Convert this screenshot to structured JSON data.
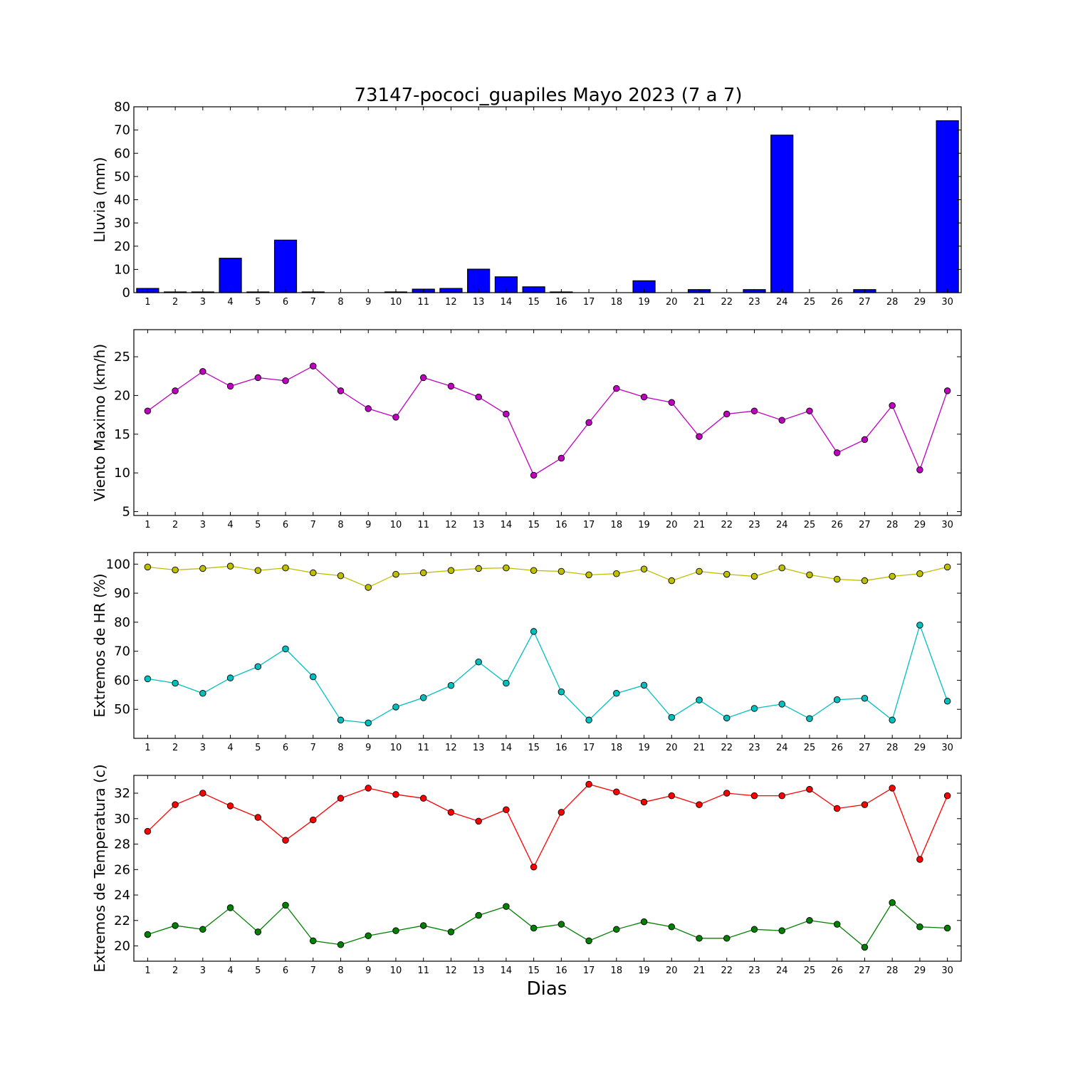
{
  "figure": {
    "title": "73147-pococi_guapiles Mayo 2023  (7 a 7)",
    "xlabel": "Dias"
  },
  "chart_data": [
    {
      "type": "bar",
      "ylabel": "Lluvia (mm)",
      "ylim": [
        0,
        80
      ],
      "yticks": [
        0,
        10,
        20,
        30,
        40,
        50,
        60,
        70,
        80
      ],
      "xlim": [
        0.5,
        30.5
      ],
      "x": [
        1,
        2,
        3,
        4,
        5,
        6,
        7,
        8,
        9,
        10,
        11,
        12,
        13,
        14,
        15,
        16,
        17,
        18,
        19,
        20,
        21,
        22,
        23,
        24,
        25,
        26,
        27,
        28,
        29,
        30
      ],
      "series": [
        {
          "color": "#0000ff",
          "values": [
            1.8,
            0.3,
            0.3,
            14.8,
            0.3,
            22.6,
            0.3,
            0,
            0,
            0.3,
            1.5,
            1.8,
            10.1,
            6.8,
            2.5,
            0.3,
            0,
            0,
            5.1,
            0,
            1.3,
            0,
            1.3,
            67.8,
            0,
            0,
            1.3,
            0,
            0,
            74.0
          ]
        }
      ]
    },
    {
      "type": "line",
      "ylabel": "Viento Maximo (km/h)",
      "ylim": [
        4.5,
        28.5
      ],
      "yticks": [
        5,
        10,
        15,
        20,
        25
      ],
      "xlim": [
        0.5,
        30.5
      ],
      "x": [
        1,
        2,
        3,
        4,
        5,
        6,
        7,
        8,
        9,
        10,
        11,
        12,
        13,
        14,
        15,
        16,
        17,
        18,
        19,
        20,
        21,
        22,
        23,
        24,
        25,
        26,
        27,
        28,
        29,
        30
      ],
      "series": [
        {
          "color": "#bf00bf",
          "values": [
            18.0,
            20.6,
            23.1,
            21.2,
            22.3,
            21.9,
            23.8,
            20.6,
            18.3,
            17.2,
            22.3,
            21.2,
            19.8,
            17.6,
            9.7,
            11.9,
            16.5,
            20.9,
            19.8,
            19.1,
            14.7,
            17.6,
            18.0,
            16.8,
            18.0,
            12.6,
            14.3,
            18.7,
            10.4,
            20.6
          ]
        }
      ]
    },
    {
      "type": "line",
      "ylabel": "Extremos de HR (%)",
      "ylim": [
        40,
        104
      ],
      "yticks": [
        50,
        60,
        70,
        80,
        90,
        100
      ],
      "xlim": [
        0.5,
        30.5
      ],
      "x": [
        1,
        2,
        3,
        4,
        5,
        6,
        7,
        8,
        9,
        10,
        11,
        12,
        13,
        14,
        15,
        16,
        17,
        18,
        19,
        20,
        21,
        22,
        23,
        24,
        25,
        26,
        27,
        28,
        29,
        30
      ],
      "series": [
        {
          "color": "#bfbf00",
          "values": [
            99,
            98,
            98.5,
            99.3,
            97.8,
            98.7,
            97,
            96,
            92,
            96.5,
            97,
            97.8,
            98.5,
            98.7,
            97.8,
            97.5,
            96.3,
            96.7,
            98.3,
            94.3,
            97.5,
            96.5,
            95.8,
            98.7,
            96.3,
            94.8,
            94.3,
            95.8,
            96.7,
            99
          ]
        },
        {
          "color": "#00bfbf",
          "values": [
            60.5,
            59,
            55.5,
            60.8,
            64.7,
            70.8,
            61.2,
            46.3,
            45.3,
            50.8,
            54,
            58.2,
            66.3,
            59,
            76.8,
            56,
            46.3,
            55.5,
            58.3,
            47.2,
            53.2,
            47,
            50.3,
            51.8,
            46.8,
            53.3,
            53.8,
            46.3,
            79,
            52.8
          ]
        }
      ]
    },
    {
      "type": "line",
      "ylabel": "Extremos de Temperatura (c)",
      "ylim": [
        18.8,
        33.4
      ],
      "yticks": [
        20,
        22,
        24,
        26,
        28,
        30,
        32
      ],
      "xlim": [
        0.5,
        30.5
      ],
      "x": [
        1,
        2,
        3,
        4,
        5,
        6,
        7,
        8,
        9,
        10,
        11,
        12,
        13,
        14,
        15,
        16,
        17,
        18,
        19,
        20,
        21,
        22,
        23,
        24,
        25,
        26,
        27,
        28,
        29,
        30
      ],
      "series": [
        {
          "color": "#ff0000",
          "values": [
            29.0,
            31.1,
            32.0,
            31.0,
            30.1,
            28.3,
            29.9,
            31.6,
            32.4,
            31.9,
            31.6,
            30.5,
            29.8,
            30.7,
            26.2,
            30.5,
            32.7,
            32.1,
            31.3,
            31.8,
            31.1,
            32.0,
            31.8,
            31.8,
            32.3,
            30.8,
            31.1,
            32.4,
            26.8,
            31.8
          ]
        },
        {
          "color": "#008000",
          "values": [
            20.9,
            21.6,
            21.3,
            23.0,
            21.1,
            23.2,
            20.4,
            20.1,
            20.8,
            21.2,
            21.6,
            21.1,
            22.4,
            23.1,
            21.4,
            21.7,
            20.4,
            21.3,
            21.9,
            21.5,
            20.6,
            20.6,
            21.3,
            21.2,
            22.0,
            21.7,
            19.9,
            23.4,
            21.5,
            21.4
          ]
        }
      ]
    }
  ]
}
